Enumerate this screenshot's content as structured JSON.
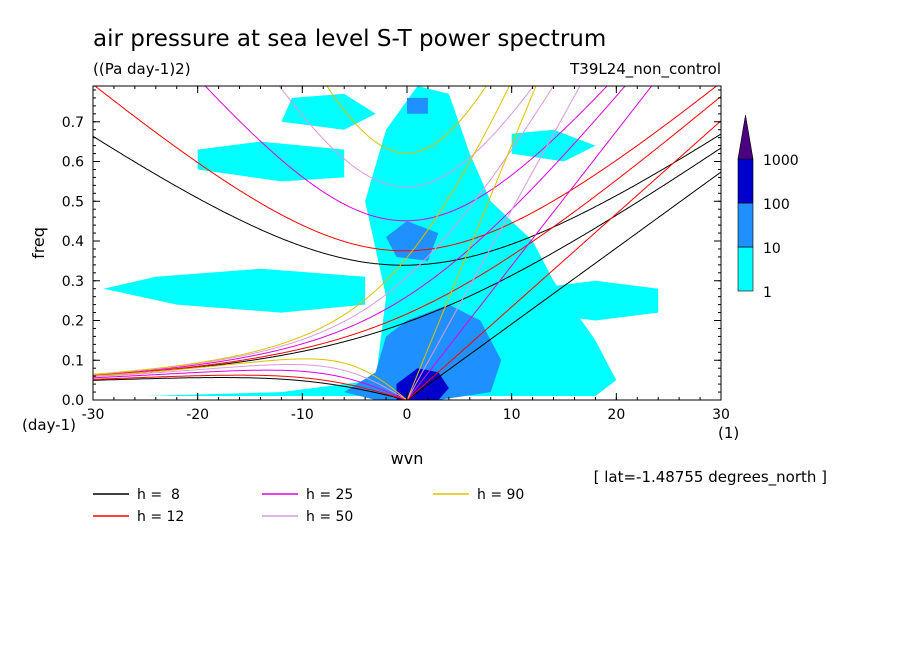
{
  "chart_data": {
    "type": "heatmap",
    "title": "air pressure at sea level S-T power spectrum",
    "units": "((Pa day-1)2)",
    "experiment": "T39L24_non_control",
    "xlabel": "wvn",
    "ylabel": "freq",
    "x_unit": "(1)",
    "y_unit": "(day-1)",
    "xlim": [
      -30,
      30
    ],
    "ylim": [
      0,
      0.79
    ],
    "x_ticks": [
      "-30",
      "-20",
      "-10",
      "0",
      "10",
      "20",
      "30"
    ],
    "y_ticks": [
      "0.0",
      "0.1",
      "0.2",
      "0.3",
      "0.4",
      "0.5",
      "0.6",
      "0.7"
    ],
    "annotation": "[ lat=-1.48755 degrees_north ]",
    "colorbar": {
      "levels": [
        "1",
        "10",
        "100",
        "1000"
      ],
      "colors": [
        "#00ffff",
        "#1e90ff",
        "#0000cd",
        "#4b0082"
      ]
    },
    "dispersion_curves": [
      {
        "h_label": "h =  8",
        "h": 8,
        "color": "#000000"
      },
      {
        "h_label": "h = 12",
        "h": 12,
        "color": "#ff0000"
      },
      {
        "h_label": "h = 25",
        "h": 25,
        "color": "#e000e0"
      },
      {
        "h_label": "h = 50",
        "h": 50,
        "color": "#dd99dd"
      },
      {
        "h_label": "h = 90",
        "h": 90,
        "color": "#e0c000"
      }
    ],
    "contour_regions": [
      {
        "level": "1",
        "polygon": [
          [
            -25,
            0.01
          ],
          [
            -12,
            0.02
          ],
          [
            -3,
            0.05
          ],
          [
            -2,
            0.26
          ],
          [
            -4,
            0.5
          ],
          [
            -2,
            0.68
          ],
          [
            1,
            0.79
          ],
          [
            4,
            0.77
          ],
          [
            6,
            0.62
          ],
          [
            8,
            0.5
          ],
          [
            12,
            0.4
          ],
          [
            14,
            0.3
          ],
          [
            18,
            0.15
          ],
          [
            20,
            0.05
          ],
          [
            18,
            0.01
          ]
        ]
      },
      {
        "level": "1",
        "polygon": [
          [
            -29,
            0.28
          ],
          [
            -22,
            0.24
          ],
          [
            -12,
            0.22
          ],
          [
            -4,
            0.24
          ],
          [
            -4,
            0.31
          ],
          [
            -14,
            0.33
          ],
          [
            -24,
            0.31
          ]
        ]
      },
      {
        "level": "1",
        "polygon": [
          [
            -20,
            0.58
          ],
          [
            -12,
            0.55
          ],
          [
            -6,
            0.56
          ],
          [
            -6,
            0.63
          ],
          [
            -14,
            0.65
          ],
          [
            -20,
            0.63
          ]
        ]
      },
      {
        "level": "1",
        "polygon": [
          [
            -12,
            0.7
          ],
          [
            -6,
            0.68
          ],
          [
            -3,
            0.72
          ],
          [
            -6,
            0.77
          ],
          [
            -11,
            0.76
          ]
        ]
      },
      {
        "level": "1",
        "polygon": [
          [
            12,
            0.22
          ],
          [
            18,
            0.2
          ],
          [
            24,
            0.22
          ],
          [
            24,
            0.28
          ],
          [
            18,
            0.3
          ],
          [
            12,
            0.28
          ]
        ]
      },
      {
        "level": "1",
        "polygon": [
          [
            10,
            0.62
          ],
          [
            15,
            0.6
          ],
          [
            18,
            0.64
          ],
          [
            14,
            0.68
          ],
          [
            10,
            0.67
          ]
        ]
      },
      {
        "level": "10",
        "polygon": [
          [
            -6,
            0.02
          ],
          [
            -3,
            0.07
          ],
          [
            -2,
            0.16
          ],
          [
            0,
            0.2
          ],
          [
            4,
            0.24
          ],
          [
            7,
            0.2
          ],
          [
            9,
            0.1
          ],
          [
            8,
            0.02
          ],
          [
            3,
            0.0
          ],
          [
            -3,
            0.0
          ]
        ]
      },
      {
        "level": "10",
        "polygon": [
          [
            -1,
            0.36
          ],
          [
            2,
            0.35
          ],
          [
            3,
            0.42
          ],
          [
            0,
            0.45
          ],
          [
            -2,
            0.41
          ]
        ]
      },
      {
        "level": "10",
        "polygon": [
          [
            0,
            0.72
          ],
          [
            2,
            0.72
          ],
          [
            2,
            0.76
          ],
          [
            0,
            0.76
          ]
        ]
      },
      {
        "level": "100",
        "polygon": [
          [
            -1,
            0.0
          ],
          [
            -1,
            0.04
          ],
          [
            1,
            0.08
          ],
          [
            3,
            0.07
          ],
          [
            4,
            0.03
          ],
          [
            3,
            0.0
          ]
        ]
      }
    ]
  },
  "legend": [
    {
      "label": "h =  8",
      "color": "#000000"
    },
    {
      "label": "h = 12",
      "color": "#ff0000"
    },
    {
      "label": "h = 25",
      "color": "#e000e0"
    },
    {
      "label": "h = 50",
      "color": "#dd99dd"
    },
    {
      "label": "h = 90",
      "color": "#e0c000"
    }
  ]
}
